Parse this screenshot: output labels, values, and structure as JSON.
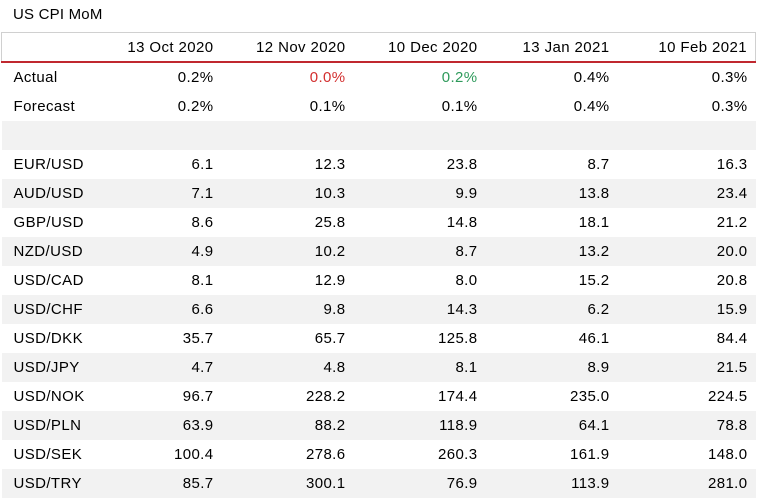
{
  "title": "US CPI MoM",
  "columns": [
    "13 Oct 2020",
    "12 Nov 2020",
    "10 Dec 2020",
    "13 Jan 2021",
    "10 Feb 2021"
  ],
  "actual": {
    "label": "Actual",
    "values": [
      "0.2%",
      "0.0%",
      "0.2%",
      "0.4%",
      "0.3%"
    ]
  },
  "forecast": {
    "label": "Forecast",
    "values": [
      "0.2%",
      "0.1%",
      "0.1%",
      "0.4%",
      "0.3%"
    ]
  },
  "colors": {
    "header_rule": "#c0282f",
    "below_forecast": "#d32f2f",
    "above_forecast": "#2e9a5b",
    "stripe": "#f2f2f2"
  },
  "rows": [
    {
      "pair": "EUR/USD",
      "values": [
        "6.1",
        "12.3",
        "23.8",
        "8.7",
        "16.3"
      ]
    },
    {
      "pair": "AUD/USD",
      "values": [
        "7.1",
        "10.3",
        "9.9",
        "13.8",
        "23.4"
      ]
    },
    {
      "pair": "GBP/USD",
      "values": [
        "8.6",
        "25.8",
        "14.8",
        "18.1",
        "21.2"
      ]
    },
    {
      "pair": "NZD/USD",
      "values": [
        "4.9",
        "10.2",
        "8.7",
        "13.2",
        "20.0"
      ]
    },
    {
      "pair": "USD/CAD",
      "values": [
        "8.1",
        "12.9",
        "8.0",
        "15.2",
        "20.8"
      ]
    },
    {
      "pair": "USD/CHF",
      "values": [
        "6.6",
        "9.8",
        "14.3",
        "6.2",
        "15.9"
      ]
    },
    {
      "pair": "USD/DKK",
      "values": [
        "35.7",
        "65.7",
        "125.8",
        "46.1",
        "84.4"
      ]
    },
    {
      "pair": "USD/JPY",
      "values": [
        "4.7",
        "4.8",
        "8.1",
        "8.9",
        "21.5"
      ]
    },
    {
      "pair": "USD/NOK",
      "values": [
        "96.7",
        "228.2",
        "174.4",
        "235.0",
        "224.5"
      ]
    },
    {
      "pair": "USD/PLN",
      "values": [
        "63.9",
        "88.2",
        "118.9",
        "64.1",
        "78.8"
      ]
    },
    {
      "pair": "USD/SEK",
      "values": [
        "100.4",
        "278.6",
        "260.3",
        "161.9",
        "148.0"
      ]
    },
    {
      "pair": "USD/TRY",
      "values": [
        "85.7",
        "300.1",
        "76.9",
        "113.9",
        "281.0"
      ]
    }
  ]
}
